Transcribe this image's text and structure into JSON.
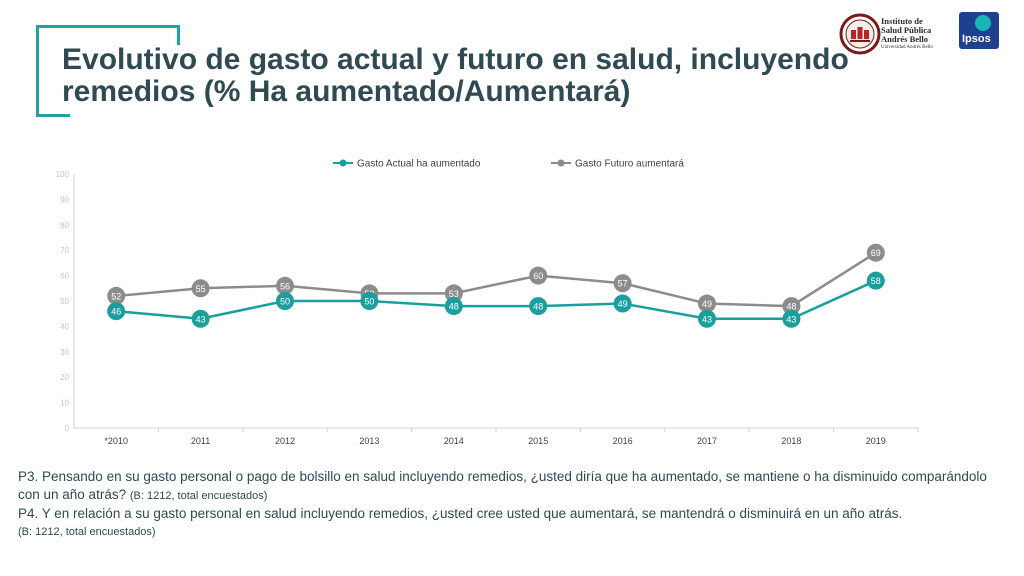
{
  "title": "Evolutivo de gasto actual y futuro en salud, incluyendo remedios (% Ha aumentado/Aumentará)",
  "logos": {
    "isp_lines": [
      "Instituto de",
      "Salud Pública",
      "Andrés Bello"
    ],
    "isp_sub": "Universidad Andrés Bello",
    "ipsos": "Ipsos"
  },
  "notes": {
    "p3": "P3. Pensando en su gasto personal o pago de bolsillo en salud incluyendo remedios, ¿usted diría que ha aumentado, se mantiene o ha disminuido comparándolo con un año atrás?",
    "p3_base": "(B: 1212, total encuestados)",
    "p4": "P4. Y en relación a su gasto personal en salud incluyendo remedios, ¿usted cree usted que aumentará, se mantendrá o disminuirá en un año atrás.",
    "p4_base": "(B: 1212, total encuestados)"
  },
  "chart_data": {
    "type": "line",
    "categories": [
      "*2010",
      "2011",
      "2012",
      "2013",
      "2014",
      "2015",
      "2016",
      "2017",
      "2018",
      "2019"
    ],
    "series": [
      {
        "name": "Gasto Actual ha aumentado",
        "values": [
          46,
          43,
          50,
          50,
          48,
          48,
          49,
          43,
          43,
          58
        ],
        "color": "#1a9e9e"
      },
      {
        "name": "Gasto Futuro aumentará",
        "values": [
          52,
          55,
          56,
          53,
          53,
          60,
          57,
          49,
          48,
          69
        ],
        "color": "#8c8c8c"
      }
    ],
    "yticks": [
      0,
      10,
      20,
      30,
      40,
      50,
      60,
      70,
      80,
      90,
      100
    ],
    "ylim": [
      0,
      100
    ],
    "legend": "top",
    "grid": false
  }
}
